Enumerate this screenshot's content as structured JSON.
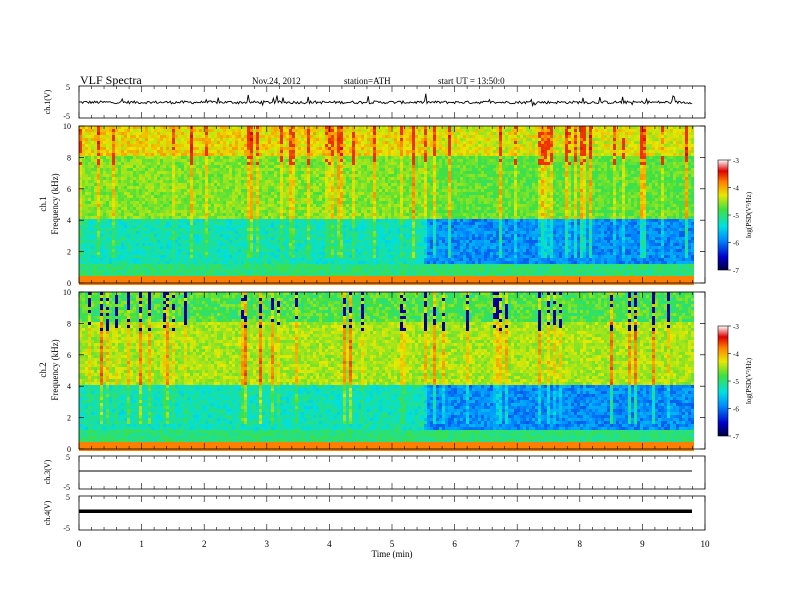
{
  "header": {
    "title": "VLF Spectra",
    "date": "Nov.24, 2012",
    "station": "station=ATH",
    "start": "start UT = 13:50:0"
  },
  "chart_data": [
    {
      "type": "line",
      "ylabel": "ch.1(V)",
      "ylim": [
        -5,
        5
      ],
      "yticks": [
        "5",
        "-5"
      ],
      "xlim": [
        0,
        10
      ],
      "series_level": -0.1
    },
    {
      "type": "heatmap",
      "ylabel_line1": "ch.1",
      "ylabel_line2": "Frequency (kHz)",
      "ylim": [
        0,
        10
      ],
      "yticks": [
        "0",
        "2",
        "4",
        "6",
        "8",
        "10"
      ],
      "xlim": [
        0,
        10
      ],
      "data_end_min": 9.8,
      "colorbar": {
        "label": "log(PSD(V²/Hz)",
        "range": [
          -7,
          -3
        ],
        "ticks": [
          "-3",
          "-4",
          "-5",
          "-6",
          "-7"
        ]
      }
    },
    {
      "type": "heatmap",
      "ylabel_line1": "ch.2",
      "ylabel_line2": "Frequency (kHz)",
      "ylim": [
        0,
        10
      ],
      "yticks": [
        "0",
        "2",
        "4",
        "6",
        "8",
        "10"
      ],
      "xlim": [
        0,
        10
      ],
      "data_end_min": 9.8,
      "colorbar": {
        "label": "log(PSD(V²/Hz)",
        "range": [
          -7,
          -3
        ],
        "ticks": [
          "-3",
          "-4",
          "-5",
          "-6",
          "-7"
        ]
      }
    },
    {
      "type": "line",
      "ylabel": "ch.3(V)",
      "ylim": [
        -5,
        5
      ],
      "yticks": [
        "5",
        "-5"
      ],
      "xlim": [
        0,
        10
      ],
      "series_level": 0
    },
    {
      "type": "line",
      "ylabel": "ch.4(V)",
      "ylim": [
        -5,
        5
      ],
      "yticks": [
        "5",
        "-5"
      ],
      "xlim": [
        0,
        10
      ],
      "series_level": 0,
      "xlabel": "Time (min)",
      "xticks": [
        "0",
        "1",
        "2",
        "3",
        "4",
        "5",
        "6",
        "7",
        "8",
        "9",
        "10"
      ]
    }
  ]
}
